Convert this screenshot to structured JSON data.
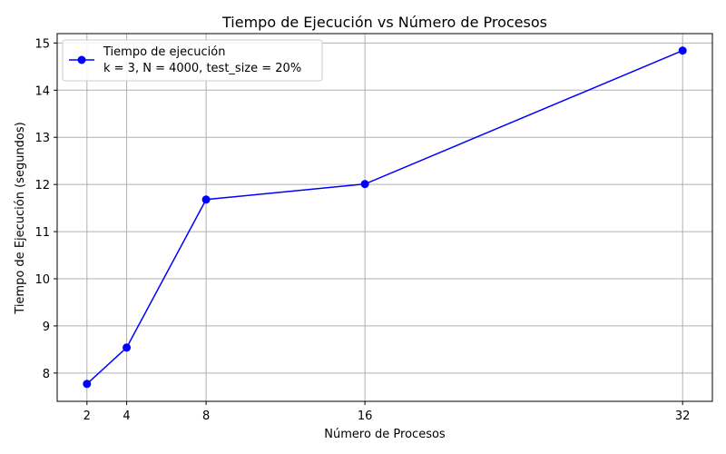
{
  "chart_data": {
    "type": "line",
    "title": "Tiempo de Ejecución vs Número de Procesos",
    "xlabel": "Número de Procesos",
    "ylabel": "Tiempo de Ejecución (segundos)",
    "x": [
      2,
      4,
      8,
      16,
      32
    ],
    "xticks": [
      2,
      4,
      8,
      16,
      32
    ],
    "xlim": [
      0.5,
      33.5
    ],
    "yticks": [
      8,
      9,
      10,
      11,
      12,
      13,
      14,
      15
    ],
    "ylim": [
      7.4,
      15.2
    ],
    "grid": true,
    "legend_position": "top-left",
    "series": [
      {
        "name": "Tiempo de ejecución",
        "name_line2": "k = 3, N = 4000, test_size = 20%",
        "color": "#0000ff",
        "marker": "circle",
        "values": [
          7.77,
          8.54,
          11.68,
          12.01,
          14.84
        ]
      }
    ]
  }
}
